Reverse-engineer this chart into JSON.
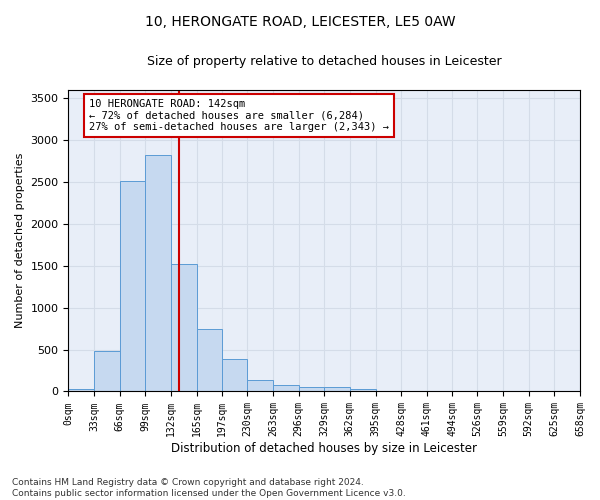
{
  "title": "10, HERONGATE ROAD, LEICESTER, LE5 0AW",
  "subtitle": "Size of property relative to detached houses in Leicester",
  "xlabel": "Distribution of detached houses by size in Leicester",
  "ylabel": "Number of detached properties",
  "bar_values": [
    30,
    480,
    2510,
    2820,
    1520,
    750,
    390,
    140,
    75,
    55,
    55,
    30,
    0,
    0,
    0,
    0,
    0,
    0,
    0,
    0
  ],
  "bin_edges": [
    0,
    33,
    66,
    99,
    132,
    165,
    197,
    230,
    263,
    296,
    329,
    362,
    395,
    428,
    461,
    494,
    526,
    559,
    592,
    625,
    658
  ],
  "tick_labels": [
    "0sqm",
    "33sqm",
    "66sqm",
    "99sqm",
    "132sqm",
    "165sqm",
    "197sqm",
    "230sqm",
    "263sqm",
    "296sqm",
    "329sqm",
    "362sqm",
    "395sqm",
    "428sqm",
    "461sqm",
    "494sqm",
    "526sqm",
    "559sqm",
    "592sqm",
    "625sqm",
    "658sqm"
  ],
  "bar_color": "#c6d9f0",
  "bar_edge_color": "#5b9bd5",
  "vline_x": 142,
  "vline_color": "#cc0000",
  "annotation_box_text": "10 HERONGATE ROAD: 142sqm\n← 72% of detached houses are smaller (6,284)\n27% of semi-detached houses are larger (2,343) →",
  "annotation_box_color": "#cc0000",
  "annotation_box_bg": "#ffffff",
  "ylim": [
    0,
    3600
  ],
  "yticks": [
    0,
    500,
    1000,
    1500,
    2000,
    2500,
    3000,
    3500
  ],
  "grid_color": "#d4dce8",
  "bg_color": "#e8eef8",
  "footnote": "Contains HM Land Registry data © Crown copyright and database right 2024.\nContains public sector information licensed under the Open Government Licence v3.0.",
  "title_fontsize": 10,
  "subtitle_fontsize": 9,
  "xlabel_fontsize": 8.5,
  "ylabel_fontsize": 8,
  "tick_fontsize": 7,
  "annotation_fontsize": 7.5,
  "footnote_fontsize": 6.5
}
